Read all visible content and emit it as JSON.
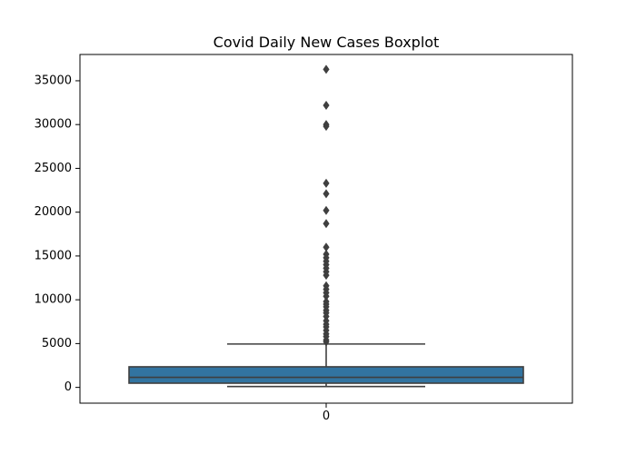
{
  "chart_data": {
    "type": "box",
    "title": "Covid Daily New Cases Boxplot",
    "xlabel": "",
    "ylabel": "",
    "categories": [
      "0"
    ],
    "ylim": [
      -1800,
      38000
    ],
    "yticks": [
      0,
      5000,
      10000,
      15000,
      20000,
      25000,
      30000,
      35000
    ],
    "grid": false,
    "box": {
      "category": "0",
      "whisker_low": 100,
      "q1": 480,
      "median": 1150,
      "q3": 2350,
      "whisker_high": 4950,
      "outliers": [
        36300,
        32200,
        30000,
        29800,
        23300,
        22100,
        20200,
        18700,
        16000,
        15200,
        14800,
        14400,
        14000,
        13600,
        13200,
        12800,
        11600,
        11200,
        10800,
        10400,
        9800,
        9500,
        9200,
        8800,
        8500,
        8100,
        7600,
        7200,
        6900,
        6500,
        6100,
        5800,
        5400,
        5200
      ]
    },
    "colors": {
      "box_fill": "#3274a1",
      "line": "#3f3f3f",
      "axis": "#000000"
    }
  }
}
